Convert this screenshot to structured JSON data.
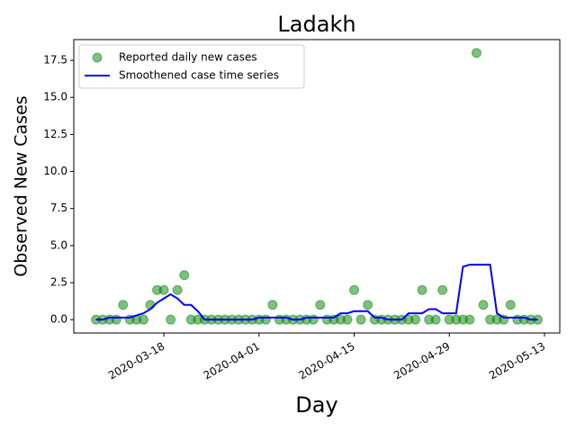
{
  "chart_data": {
    "type": "line",
    "title": "Ladakh",
    "x_label": "Day",
    "y_label": "Observed New Cases",
    "x": [
      "2020-03-08",
      "2020-03-09",
      "2020-03-10",
      "2020-03-11",
      "2020-03-12",
      "2020-03-13",
      "2020-03-14",
      "2020-03-15",
      "2020-03-16",
      "2020-03-17",
      "2020-03-18",
      "2020-03-19",
      "2020-03-20",
      "2020-03-21",
      "2020-03-22",
      "2020-03-23",
      "2020-03-24",
      "2020-03-25",
      "2020-03-26",
      "2020-03-27",
      "2020-03-28",
      "2020-03-29",
      "2020-03-30",
      "2020-03-31",
      "2020-04-01",
      "2020-04-02",
      "2020-04-03",
      "2020-04-04",
      "2020-04-05",
      "2020-04-06",
      "2020-04-07",
      "2020-04-08",
      "2020-04-09",
      "2020-04-10",
      "2020-04-11",
      "2020-04-12",
      "2020-04-13",
      "2020-04-14",
      "2020-04-15",
      "2020-04-16",
      "2020-04-17",
      "2020-04-18",
      "2020-04-19",
      "2020-04-20",
      "2020-04-21",
      "2020-04-22",
      "2020-04-23",
      "2020-04-24",
      "2020-04-25",
      "2020-04-26",
      "2020-04-27",
      "2020-04-28",
      "2020-04-29",
      "2020-04-30",
      "2020-05-01",
      "2020-05-02",
      "2020-05-03",
      "2020-05-04",
      "2020-05-05",
      "2020-05-06",
      "2020-05-07",
      "2020-05-08",
      "2020-05-09",
      "2020-05-10",
      "2020-05-11",
      "2020-05-12"
    ],
    "series": [
      {
        "name": "Reported daily new cases",
        "type": "scatter",
        "color": "green",
        "values": [
          0,
          0,
          0,
          0,
          1,
          0,
          0,
          0,
          1,
          2,
          2,
          0,
          2,
          3,
          0,
          0,
          0,
          0,
          0,
          0,
          0,
          0,
          0,
          0,
          0,
          0,
          1,
          0,
          0,
          0,
          0,
          0,
          0,
          1,
          0,
          0,
          0,
          0,
          2,
          0,
          1,
          0,
          0,
          0,
          0,
          0,
          0,
          0,
          2,
          0,
          0,
          2,
          0,
          0,
          0,
          0,
          18,
          1,
          0,
          0,
          0,
          1,
          0,
          0,
          0,
          0
        ]
      },
      {
        "name": "Smoothened case time series",
        "type": "line",
        "color": "blue",
        "values": [
          0,
          0,
          0.14,
          0.14,
          0.14,
          0.14,
          0.29,
          0.43,
          0.71,
          1.14,
          1.43,
          1.71,
          1.43,
          1.0,
          1.0,
          0.57,
          0,
          0,
          0,
          0,
          0,
          0,
          0,
          0,
          0.14,
          0.14,
          0.14,
          0.14,
          0.14,
          0,
          0,
          0.14,
          0.14,
          0.14,
          0.14,
          0.14,
          0.43,
          0.43,
          0.57,
          0.57,
          0.57,
          0.14,
          0.14,
          0,
          0,
          0,
          0.43,
          0.43,
          0.43,
          0.71,
          0.71,
          0.43,
          0.43,
          0.43,
          3.57,
          3.71,
          3.71,
          3.71,
          3.71,
          0.43,
          0.14,
          0.14,
          0.14,
          0.14,
          0,
          0
        ]
      }
    ],
    "xlim": [
      "2020-03-04T18:00:00Z",
      "2020-05-15T06:00:00Z"
    ],
    "xticks": [
      "2020-03-18",
      "2020-04-01",
      "2020-04-15",
      "2020-04-29",
      "2020-05-13"
    ],
    "ylim": [
      -0.9,
      18.9
    ],
    "yticks": [
      {
        "value": 0,
        "label": "0.0"
      },
      2.5,
      {
        "value": 5,
        "label": "5.0"
      },
      7.5,
      {
        "value": 10,
        "label": "10.0"
      },
      12.5,
      {
        "value": 15,
        "label": "15.0"
      },
      17.5
    ],
    "legend": "upper left"
  }
}
